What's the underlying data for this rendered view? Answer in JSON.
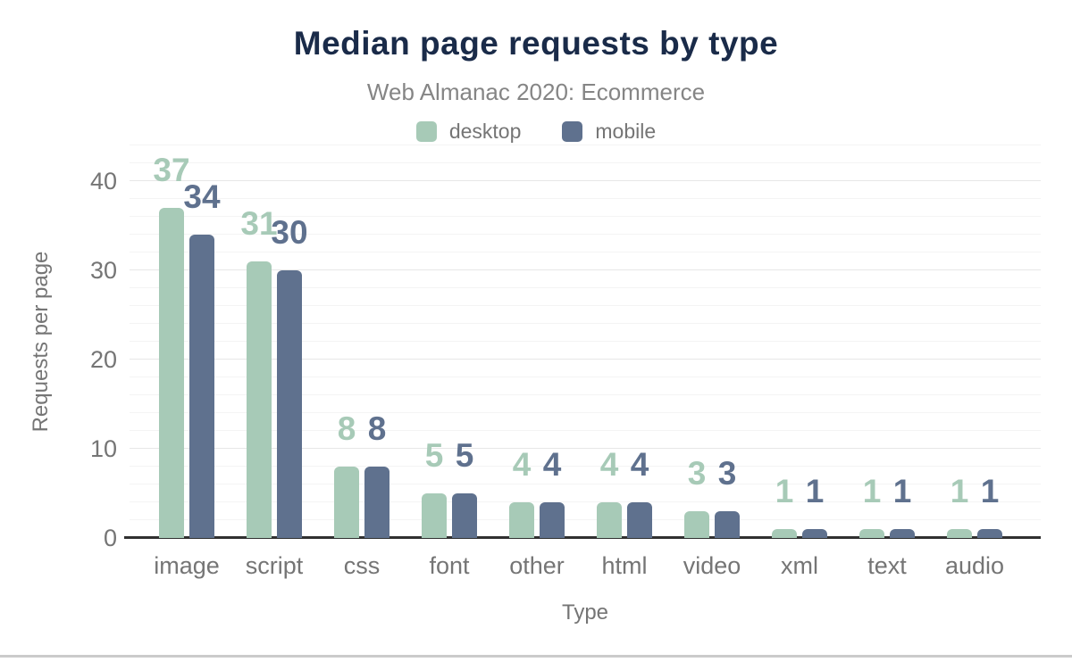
{
  "chart": {
    "title": "Median page requests by type",
    "subtitle": "Web Almanac 2020: Ecommerce"
  },
  "chart_data": {
    "type": "bar",
    "title": "Median page requests by type",
    "subtitle": "Web Almanac 2020: Ecommerce",
    "categories": [
      "image",
      "script",
      "css",
      "font",
      "other",
      "html",
      "video",
      "xml",
      "text",
      "audio"
    ],
    "series": [
      {
        "name": "desktop",
        "color": "#a7cab7",
        "values": [
          37,
          31,
          8,
          5,
          4,
          4,
          3,
          1,
          1,
          1
        ]
      },
      {
        "name": "mobile",
        "color": "#5f718e",
        "values": [
          34,
          30,
          8,
          5,
          4,
          4,
          3,
          1,
          1,
          1
        ]
      }
    ],
    "xlabel": "Type",
    "ylabel": "Requests per page",
    "ylim": [
      0,
      44
    ],
    "yticks": [
      0,
      10,
      20,
      30,
      40
    ],
    "minor_grid_step": 2,
    "grid": true,
    "legend_position": "top",
    "value_labels": true
  },
  "colors": {
    "title": "#1a2b49",
    "subtitle": "#858585",
    "axis_text": "#757575",
    "grid_minor": "#f4f4f4",
    "grid_major": "#e7e7e7",
    "baseline": "#303030",
    "bottom_rule": "#cbcbcb",
    "background": "#ffffff"
  }
}
